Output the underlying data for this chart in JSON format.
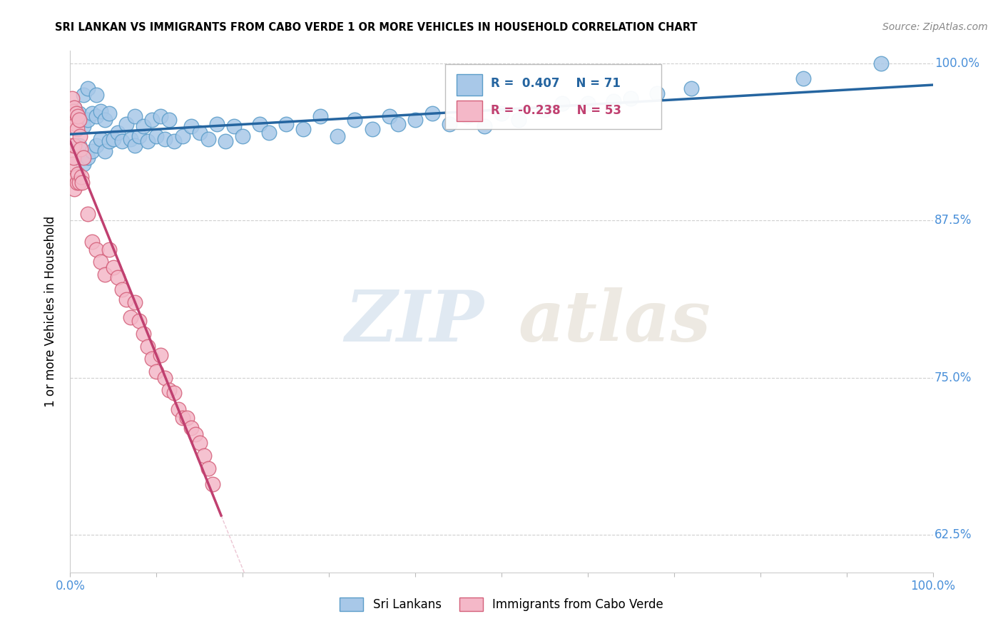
{
  "title": "SRI LANKAN VS IMMIGRANTS FROM CABO VERDE 1 OR MORE VEHICLES IN HOUSEHOLD CORRELATION CHART",
  "source": "Source: ZipAtlas.com",
  "ylabel": "1 or more Vehicles in Household",
  "xlim": [
    0.0,
    1.0
  ],
  "ylim": [
    0.595,
    1.01
  ],
  "y_ticks": [
    0.625,
    0.75,
    0.875,
    1.0
  ],
  "y_tick_labels": [
    "62.5%",
    "75.0%",
    "87.5%",
    "100.0%"
  ],
  "blue_R": 0.407,
  "blue_N": 71,
  "pink_R": -0.238,
  "pink_N": 53,
  "blue_color": "#a8c8e8",
  "blue_edge": "#5b9dc9",
  "pink_color": "#f4b8c8",
  "pink_edge": "#d4607a",
  "blue_line_color": "#2565a0",
  "pink_line_color": "#c04070",
  "grid_color": "#bbbbbb",
  "watermark_zip": "ZIP",
  "watermark_atlas": "atlas",
  "blue_scatter_x": [
    0.005,
    0.005,
    0.01,
    0.01,
    0.015,
    0.015,
    0.015,
    0.02,
    0.02,
    0.02,
    0.025,
    0.025,
    0.03,
    0.03,
    0.03,
    0.035,
    0.035,
    0.04,
    0.04,
    0.045,
    0.045,
    0.05,
    0.055,
    0.06,
    0.065,
    0.07,
    0.075,
    0.075,
    0.08,
    0.085,
    0.09,
    0.095,
    0.1,
    0.105,
    0.11,
    0.115,
    0.12,
    0.13,
    0.14,
    0.15,
    0.16,
    0.17,
    0.18,
    0.19,
    0.2,
    0.22,
    0.23,
    0.25,
    0.27,
    0.29,
    0.31,
    0.33,
    0.35,
    0.37,
    0.38,
    0.4,
    0.42,
    0.44,
    0.46,
    0.48,
    0.5,
    0.52,
    0.55,
    0.57,
    0.6,
    0.63,
    0.65,
    0.68,
    0.72,
    0.85,
    0.94
  ],
  "blue_scatter_y": [
    0.935,
    0.965,
    0.935,
    0.96,
    0.92,
    0.95,
    0.975,
    0.925,
    0.955,
    0.98,
    0.93,
    0.96,
    0.935,
    0.958,
    0.975,
    0.94,
    0.962,
    0.93,
    0.955,
    0.938,
    0.96,
    0.94,
    0.945,
    0.938,
    0.952,
    0.94,
    0.935,
    0.958,
    0.942,
    0.95,
    0.938,
    0.955,
    0.942,
    0.958,
    0.94,
    0.955,
    0.938,
    0.942,
    0.95,
    0.945,
    0.94,
    0.952,
    0.938,
    0.95,
    0.942,
    0.952,
    0.945,
    0.952,
    0.948,
    0.958,
    0.942,
    0.955,
    0.948,
    0.958,
    0.952,
    0.955,
    0.96,
    0.952,
    0.958,
    0.95,
    0.96,
    0.955,
    0.963,
    0.968,
    0.968,
    0.97,
    0.972,
    0.976,
    0.98,
    0.988,
    1.0
  ],
  "pink_scatter_x": [
    0.002,
    0.002,
    0.003,
    0.003,
    0.004,
    0.004,
    0.005,
    0.005,
    0.005,
    0.006,
    0.007,
    0.007,
    0.008,
    0.008,
    0.009,
    0.009,
    0.01,
    0.01,
    0.011,
    0.012,
    0.013,
    0.014,
    0.015,
    0.02,
    0.025,
    0.03,
    0.035,
    0.04,
    0.045,
    0.05,
    0.055,
    0.06,
    0.065,
    0.07,
    0.075,
    0.08,
    0.085,
    0.09,
    0.095,
    0.1,
    0.105,
    0.11,
    0.115,
    0.12,
    0.125,
    0.13,
    0.135,
    0.14,
    0.145,
    0.15,
    0.155,
    0.16,
    0.165
  ],
  "pink_scatter_y": [
    0.972,
    0.935,
    0.958,
    0.92,
    0.962,
    0.925,
    0.965,
    0.935,
    0.9,
    0.952,
    0.96,
    0.91,
    0.948,
    0.905,
    0.958,
    0.912,
    0.955,
    0.905,
    0.942,
    0.932,
    0.91,
    0.905,
    0.925,
    0.88,
    0.858,
    0.852,
    0.842,
    0.832,
    0.852,
    0.838,
    0.83,
    0.82,
    0.812,
    0.798,
    0.81,
    0.795,
    0.785,
    0.775,
    0.765,
    0.755,
    0.768,
    0.75,
    0.74,
    0.738,
    0.725,
    0.718,
    0.718,
    0.71,
    0.705,
    0.698,
    0.688,
    0.678,
    0.665
  ]
}
